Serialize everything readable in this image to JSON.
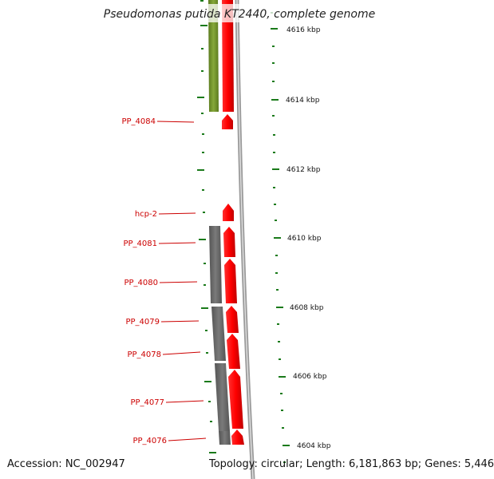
{
  "title": "Pseudomonas putida KT2440, complete genome",
  "footer": {
    "accession": "Accession: NC_002947",
    "topology": "Topology: circular; Length: 6,181,863 bp; Genes: 5,446"
  },
  "kbp_labels": [
    "4616 kbp",
    "4614 kbp",
    "4612 kbp",
    "4610 kbp",
    "4608 kbp",
    "4606 kbp",
    "4604 kbp"
  ],
  "gene_labels": [
    "PP_4084",
    "hcp-2",
    "PP_4081",
    "PP_4080",
    "PP_4079",
    "PP_4078",
    "PP_4077",
    "PP_4076"
  ],
  "colors": {
    "cds_red": "#ff0000",
    "homolog_olive": "#6b8e23",
    "homolog_gray": "#666666",
    "backbone_gray": "#999999",
    "tick_green": "#1a7a1a",
    "label_red": "#cc0000"
  },
  "icons": [
    "gene-arrow",
    "backbone-arc",
    "scale-tick"
  ]
}
